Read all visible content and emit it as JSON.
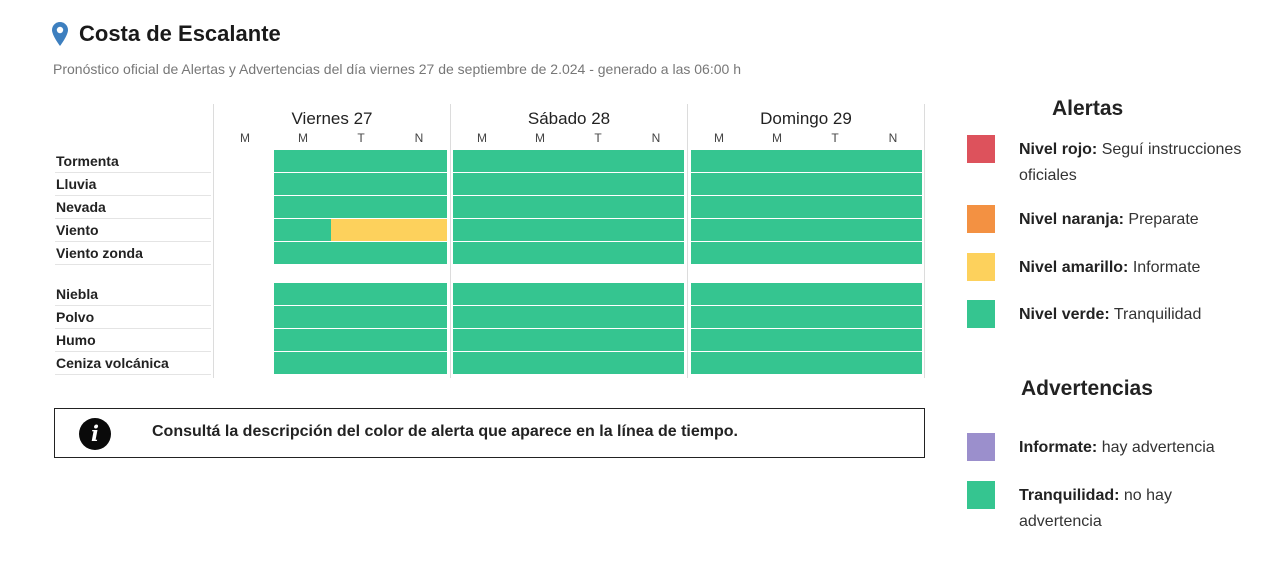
{
  "header": {
    "title": "Costa de Escalante",
    "subtitle": "Pronóstico oficial de Alertas y Advertencias del día viernes 27 de septiembre de 2.024 - generado a las 06:00 h"
  },
  "colors": {
    "verde": "#35c590",
    "amarillo": "#fdd15c",
    "naranja": "#f39142",
    "rojo": "#dd525c",
    "violeta": "#9b8fcc",
    "pin": "#3d7fbf"
  },
  "timeline": {
    "days": [
      "Viernes 27",
      "Sábado 28",
      "Domingo 29"
    ],
    "slots": [
      "M",
      "M",
      "T",
      "N"
    ],
    "rows": [
      {
        "label": "Tormenta",
        "levels": [
          null,
          "verde",
          "verde",
          "verde",
          "verde",
          "verde",
          "verde",
          "verde",
          "verde",
          "verde",
          "verde",
          "verde"
        ]
      },
      {
        "label": "Lluvia",
        "levels": [
          null,
          "verde",
          "verde",
          "verde",
          "verde",
          "verde",
          "verde",
          "verde",
          "verde",
          "verde",
          "verde",
          "verde"
        ]
      },
      {
        "label": "Nevada",
        "levels": [
          null,
          "verde",
          "verde",
          "verde",
          "verde",
          "verde",
          "verde",
          "verde",
          "verde",
          "verde",
          "verde",
          "verde"
        ]
      },
      {
        "label": "Viento",
        "levels": [
          null,
          "verde",
          "amarillo",
          "amarillo",
          "verde",
          "verde",
          "verde",
          "verde",
          "verde",
          "verde",
          "verde",
          "verde"
        ]
      },
      {
        "label": "Viento zonda",
        "levels": [
          null,
          "verde",
          "verde",
          "verde",
          "verde",
          "verde",
          "verde",
          "verde",
          "verde",
          "verde",
          "verde",
          "verde"
        ]
      },
      {
        "label": "Niebla",
        "levels": [
          null,
          "verde",
          "verde",
          "verde",
          "verde",
          "verde",
          "verde",
          "verde",
          "verde",
          "verde",
          "verde",
          "verde"
        ]
      },
      {
        "label": "Polvo",
        "levels": [
          null,
          "verde",
          "verde",
          "verde",
          "verde",
          "verde",
          "verde",
          "verde",
          "verde",
          "verde",
          "verde",
          "verde"
        ]
      },
      {
        "label": "Humo",
        "levels": [
          null,
          "verde",
          "verde",
          "verde",
          "verde",
          "verde",
          "verde",
          "verde",
          "verde",
          "verde",
          "verde",
          "verde"
        ]
      },
      {
        "label": "Ceniza volcánica",
        "levels": [
          null,
          "verde",
          "verde",
          "verde",
          "verde",
          "verde",
          "verde",
          "verde",
          "verde",
          "verde",
          "verde",
          "verde"
        ]
      }
    ]
  },
  "info": {
    "icon": "info-icon",
    "glyph": "i",
    "text": "Consultá la descripción del color de alerta que aparece en la línea de tiempo."
  },
  "legend": {
    "alertas": {
      "title": "Alertas",
      "items": [
        {
          "color": "rojo",
          "name": "Nivel rojo:",
          "desc": "Seguí instrucciones oficiales"
        },
        {
          "color": "naranja",
          "name": "Nivel naranja:",
          "desc": "Preparate"
        },
        {
          "color": "amarillo",
          "name": "Nivel amarillo:",
          "desc": "Informate"
        },
        {
          "color": "verde",
          "name": "Nivel verde:",
          "desc": "Tranquilidad"
        }
      ]
    },
    "advertencias": {
      "title": "Advertencias",
      "items": [
        {
          "color": "violeta",
          "name": "Informate:",
          "desc": "hay advertencia"
        },
        {
          "color": "verde",
          "name": "Tranquilidad:",
          "desc": "no hay advertencia"
        }
      ]
    }
  }
}
